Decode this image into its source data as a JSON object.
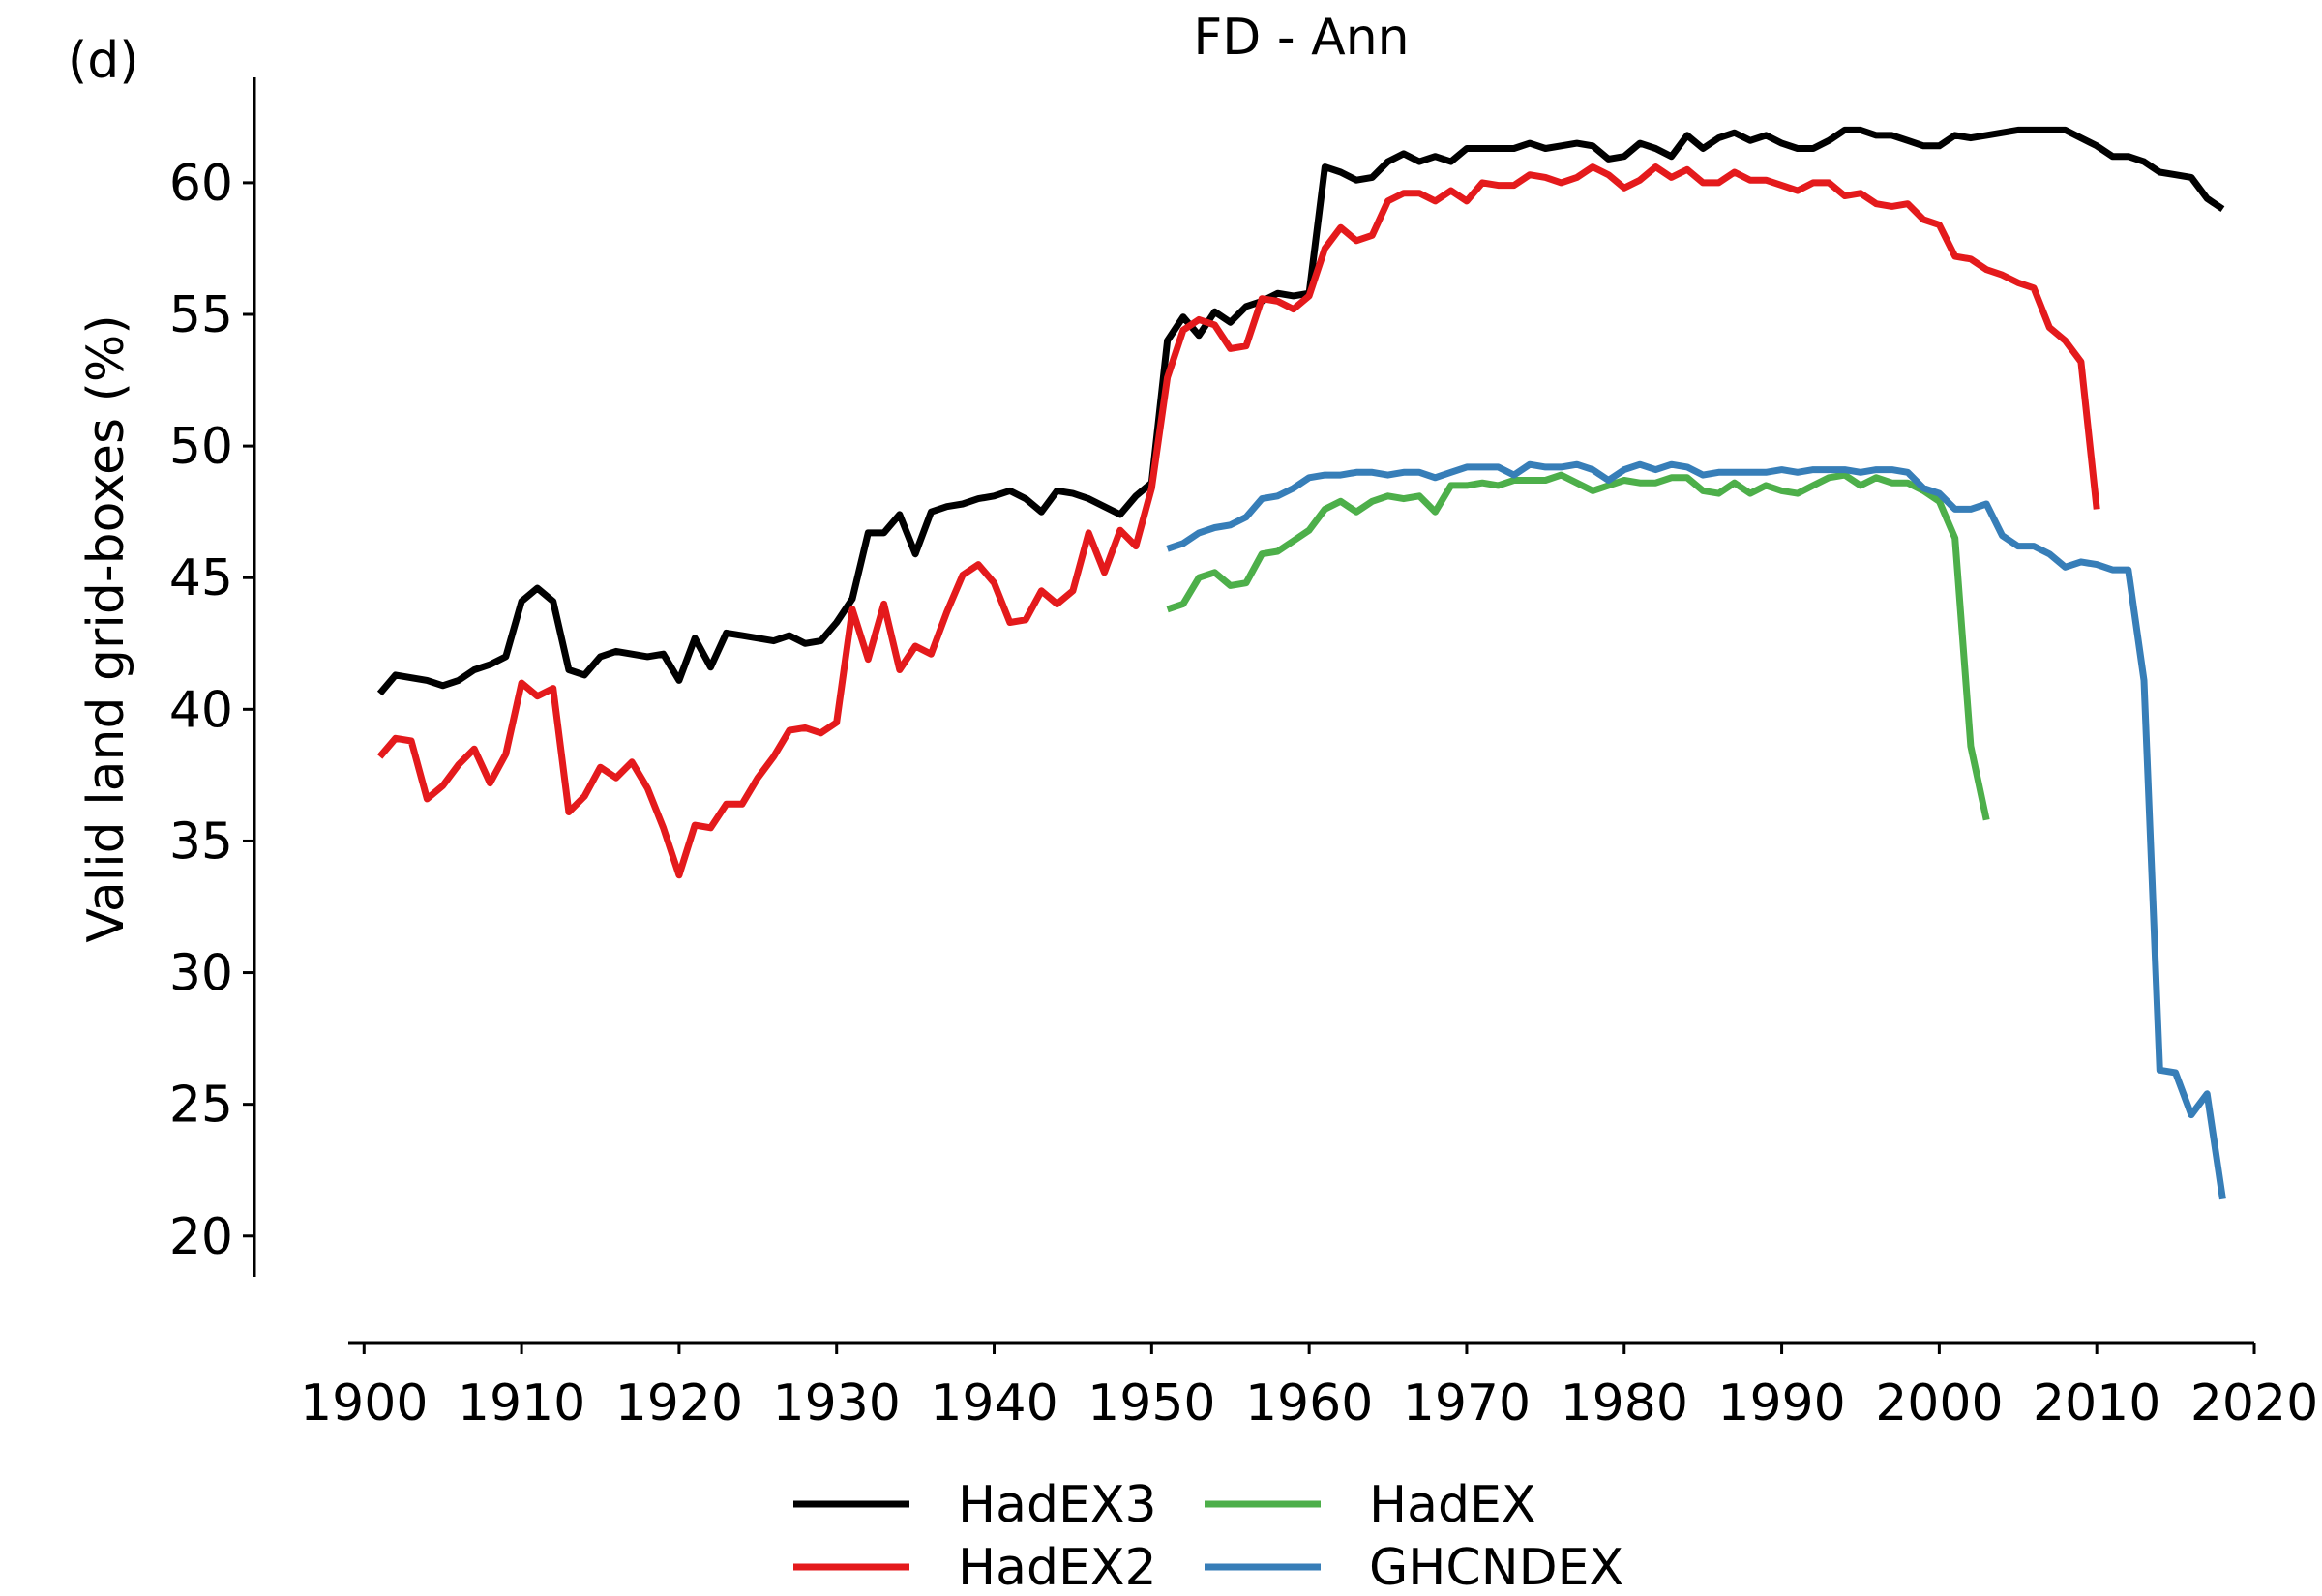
{
  "chart_data": {
    "type": "line",
    "panel_label": "(d)",
    "title": "FD - Ann",
    "xlabel": "",
    "ylabel": "Valid land grid-boxes (%)",
    "xlim": [
      1899,
      2020
    ],
    "ylim": [
      19,
      64
    ],
    "xticks": [
      1900,
      1910,
      1920,
      1930,
      1940,
      1950,
      1960,
      1970,
      1980,
      1990,
      2000,
      2010,
      2020
    ],
    "yticks": [
      20,
      25,
      30,
      35,
      40,
      45,
      50,
      55,
      60
    ],
    "grid": false,
    "legend_position": "bottom-center",
    "series": [
      {
        "name": "HadEX3",
        "color": "#000000",
        "x_start": 1901,
        "values": [
          40.6,
          41.3,
          41.2,
          41.1,
          40.9,
          41.1,
          41.5,
          41.7,
          42.0,
          44.1,
          44.6,
          44.1,
          41.5,
          41.3,
          42.0,
          42.2,
          42.1,
          42.0,
          42.1,
          41.1,
          42.7,
          41.6,
          42.9,
          42.8,
          42.7,
          42.6,
          42.8,
          42.5,
          42.6,
          43.3,
          44.2,
          46.7,
          46.7,
          47.4,
          45.9,
          47.5,
          47.7,
          47.8,
          48.0,
          48.1,
          48.3,
          48.0,
          47.5,
          48.3,
          48.2,
          48.0,
          47.7,
          47.4,
          48.1,
          48.6,
          54.0,
          54.9,
          54.2,
          55.1,
          54.7,
          55.3,
          55.5,
          55.8,
          55.7,
          55.8,
          60.6,
          60.4,
          60.1,
          60.2,
          60.8,
          61.1,
          60.8,
          61.0,
          60.8,
          61.3,
          61.3,
          61.3,
          61.3,
          61.5,
          61.3,
          61.4,
          61.5,
          61.4,
          60.9,
          61.0,
          61.5,
          61.3,
          61.0,
          61.8,
          61.3,
          61.7,
          61.9,
          61.6,
          61.8,
          61.5,
          61.3,
          61.3,
          61.6,
          62.0,
          62.0,
          61.8,
          61.8,
          61.6,
          61.4,
          61.4,
          61.8,
          61.7,
          61.8,
          61.9,
          62.0,
          62.0,
          62.0,
          62.0,
          61.7,
          61.4,
          61.0,
          61.0,
          60.8,
          60.4,
          60.3,
          60.2,
          59.4,
          59.0
        ]
      },
      {
        "name": "HadEX2",
        "color": "#e41a1c",
        "x_start": 1901,
        "values": [
          38.2,
          38.9,
          38.8,
          36.6,
          37.1,
          37.9,
          38.5,
          37.2,
          38.3,
          41.0,
          40.5,
          40.8,
          36.1,
          36.7,
          37.8,
          37.4,
          38.0,
          37.0,
          35.5,
          33.7,
          35.6,
          35.5,
          36.4,
          36.4,
          37.4,
          38.2,
          39.2,
          39.3,
          39.1,
          39.5,
          43.8,
          41.9,
          44.0,
          41.5,
          42.4,
          42.1,
          43.7,
          45.1,
          45.5,
          44.8,
          43.3,
          43.4,
          44.5,
          44.0,
          44.5,
          46.7,
          45.2,
          46.8,
          46.2,
          48.4,
          52.6,
          54.4,
          54.8,
          54.6,
          53.7,
          53.8,
          55.6,
          55.5,
          55.2,
          55.7,
          57.5,
          58.3,
          57.8,
          58.0,
          59.3,
          59.6,
          59.6,
          59.3,
          59.7,
          59.3,
          60.0,
          59.9,
          59.9,
          60.3,
          60.2,
          60.0,
          60.2,
          60.6,
          60.3,
          59.8,
          60.1,
          60.6,
          60.2,
          60.5,
          60.0,
          60.0,
          60.4,
          60.1,
          60.1,
          59.9,
          59.7,
          60.0,
          60.0,
          59.5,
          59.6,
          59.2,
          59.1,
          59.2,
          58.6,
          58.4,
          57.2,
          57.1,
          56.7,
          56.5,
          56.2,
          56.0,
          54.5,
          54.0,
          53.2,
          47.6
        ]
      },
      {
        "name": "HadEX",
        "color": "#4daf4a",
        "x_start": 1951,
        "values": [
          43.8,
          44.0,
          45.0,
          45.2,
          44.7,
          44.8,
          45.9,
          46.0,
          46.4,
          46.8,
          47.6,
          47.9,
          47.5,
          47.9,
          48.1,
          48.0,
          48.1,
          47.5,
          48.5,
          48.5,
          48.6,
          48.5,
          48.7,
          48.7,
          48.7,
          48.9,
          48.6,
          48.3,
          48.5,
          48.7,
          48.6,
          48.6,
          48.8,
          48.8,
          48.3,
          48.2,
          48.6,
          48.2,
          48.5,
          48.3,
          48.2,
          48.5,
          48.8,
          48.9,
          48.5,
          48.8,
          48.6,
          48.6,
          48.3,
          47.9,
          46.5,
          38.6,
          35.8
        ]
      },
      {
        "name": "GHCNDEX",
        "color": "#377eb8",
        "x_start": 1951,
        "values": [
          46.1,
          46.3,
          46.7,
          46.9,
          47.0,
          47.3,
          48.0,
          48.1,
          48.4,
          48.8,
          48.9,
          48.9,
          49.0,
          49.0,
          48.9,
          49.0,
          49.0,
          48.8,
          49.0,
          49.2,
          49.2,
          49.2,
          48.9,
          49.3,
          49.2,
          49.2,
          49.3,
          49.1,
          48.7,
          49.1,
          49.3,
          49.1,
          49.3,
          49.2,
          48.9,
          49.0,
          49.0,
          49.0,
          49.0,
          49.1,
          49.0,
          49.1,
          49.1,
          49.1,
          49.0,
          49.1,
          49.1,
          49.0,
          48.4,
          48.2,
          47.6,
          47.6,
          47.8,
          46.6,
          46.2,
          46.2,
          45.9,
          45.4,
          45.6,
          45.5,
          45.3,
          45.3,
          41.1,
          26.3,
          26.2,
          24.6,
          25.4,
          21.4
        ]
      }
    ]
  }
}
